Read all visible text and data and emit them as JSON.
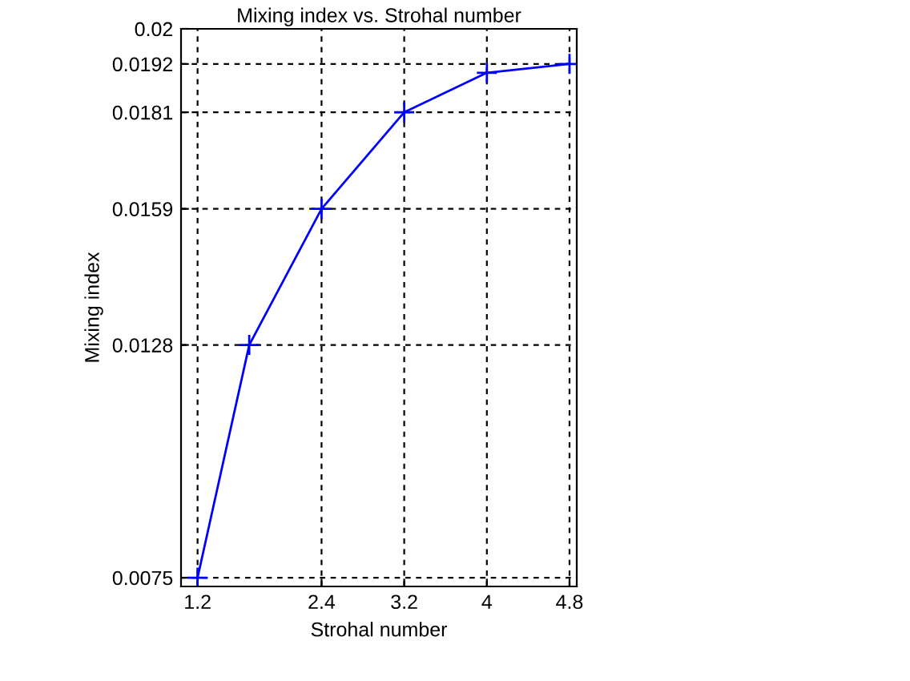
{
  "chart_data": {
    "type": "line",
    "title": "Mixing index vs. Strohal number",
    "xlabel": "Strohal number",
    "ylabel": "Mixing index",
    "x": [
      1.2,
      1.7,
      2.4,
      3.2,
      4,
      4.8
    ],
    "series": [
      {
        "color": "#0000ff",
        "values": [
          0.0075,
          0.0128,
          0.0159,
          0.0181,
          0.019,
          0.0192
        ]
      }
    ],
    "xlim": [
      1.04,
      4.87
    ],
    "xticks": [
      1.2,
      2.4,
      3.2,
      4,
      4.8
    ],
    "ylim": [
      0.0073,
      0.02
    ],
    "yticks": [
      0.0075,
      0.0128,
      0.0159,
      0.0181,
      0.0192,
      0.02
    ],
    "grid": true,
    "marker": "cross",
    "line_style": "solid"
  }
}
